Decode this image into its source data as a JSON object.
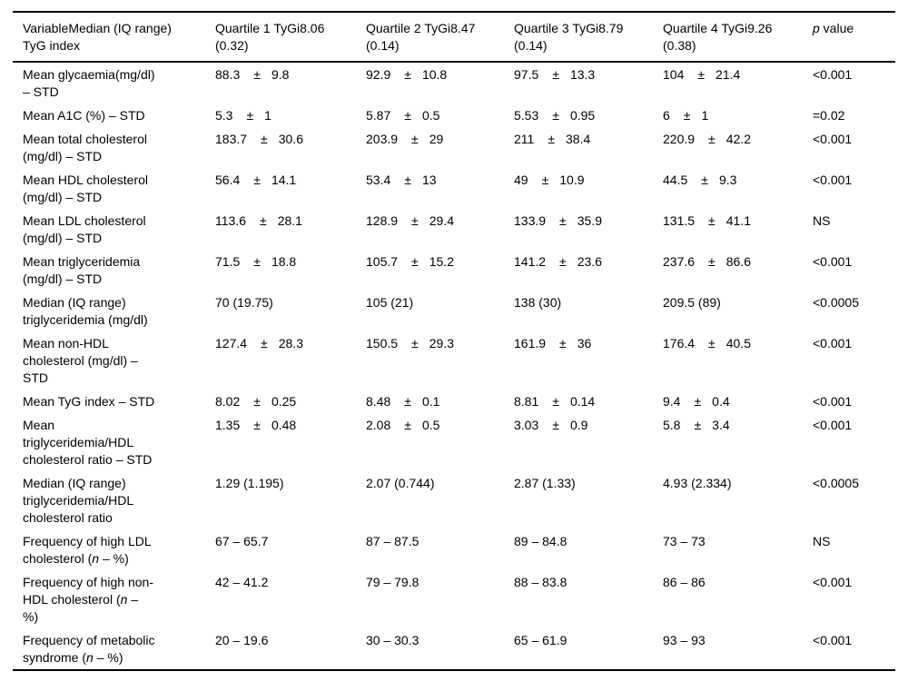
{
  "table": {
    "pm_symbol": "±",
    "header": {
      "variable": {
        "lines": [
          "VariableMedian (IQ range)",
          "TyG index"
        ]
      },
      "quartiles": [
        {
          "lines": [
            "Quartile 1 TyGi8.06",
            "(0.32)"
          ]
        },
        {
          "lines": [
            "Quartile 2 TyGi8.47",
            "(0.14)"
          ]
        },
        {
          "lines": [
            "Quartile 3 TyGi8.79",
            "(0.14)"
          ]
        },
        {
          "lines": [
            "Quartile 4 TyGi9.26",
            "(0.38)"
          ]
        }
      ],
      "p": {
        "segments": [
          {
            "t": "p",
            "i": true
          },
          {
            "t": " value"
          }
        ]
      }
    },
    "rows": [
      {
        "label_lines": [
          "Mean glycaemia(mg/dl)",
          "– STD"
        ],
        "cells": [
          {
            "mean": "88.3",
            "sd": "9.8"
          },
          {
            "mean": "92.9",
            "sd": "10.8"
          },
          {
            "mean": "97.5",
            "sd": "13.3"
          },
          {
            "mean": "104",
            "sd": "21.4"
          }
        ],
        "p": "<0.001"
      },
      {
        "label_lines": [
          "Mean A1C (%) – STD"
        ],
        "cells": [
          {
            "mean": "5.3",
            "sd": "1"
          },
          {
            "mean": "5.87",
            "sd": "0.5"
          },
          {
            "mean": "5.53",
            "sd": "0.95"
          },
          {
            "mean": "6",
            "sd": "1"
          }
        ],
        "p": "=0.02"
      },
      {
        "label_lines": [
          "Mean total cholesterol",
          "(mg/dl) – STD"
        ],
        "cells": [
          {
            "mean": "183.7",
            "sd": "30.6"
          },
          {
            "mean": "203.9",
            "sd": "29"
          },
          {
            "mean": "211",
            "sd": "38.4"
          },
          {
            "mean": "220.9",
            "sd": "42.2"
          }
        ],
        "p": "<0.001"
      },
      {
        "label_lines": [
          "Mean HDL cholesterol",
          "(mg/dl) – STD"
        ],
        "cells": [
          {
            "mean": "56.4",
            "sd": "14.1"
          },
          {
            "mean": "53.4",
            "sd": "13"
          },
          {
            "mean": "49",
            "sd": "10.9"
          },
          {
            "mean": "44.5",
            "sd": "9.3"
          }
        ],
        "p": "<0.001"
      },
      {
        "label_lines": [
          "Mean LDL cholesterol",
          "(mg/dl) – STD"
        ],
        "cells": [
          {
            "mean": "113.6",
            "sd": "28.1"
          },
          {
            "mean": "128.9",
            "sd": "29.4"
          },
          {
            "mean": "133.9",
            "sd": "35.9"
          },
          {
            "mean": "131.5",
            "sd": "41.1"
          }
        ],
        "p": "NS"
      },
      {
        "label_lines": [
          "Mean triglyceridemia",
          "(mg/dl) – STD"
        ],
        "cells": [
          {
            "mean": "71.5",
            "sd": "18.8"
          },
          {
            "mean": "105.7",
            "sd": "15.2"
          },
          {
            "mean": "141.2",
            "sd": "23.6"
          },
          {
            "mean": "237.6",
            "sd": "86.6"
          }
        ],
        "p": "<0.001"
      },
      {
        "label_lines": [
          "Median (IQ range)",
          "triglyceridemia (mg/dl)"
        ],
        "cells": [
          {
            "text": "70 (19.75)"
          },
          {
            "text": "105 (21)"
          },
          {
            "text": "138 (30)"
          },
          {
            "text": "209.5 (89)"
          }
        ],
        "p": "<0.0005"
      },
      {
        "label_lines": [
          "Mean non-HDL",
          "cholesterol (mg/dl) –",
          "STD"
        ],
        "cells": [
          {
            "mean": "127.4",
            "sd": "28.3"
          },
          {
            "mean": "150.5",
            "sd": "29.3"
          },
          {
            "mean": "161.9",
            "sd": "36"
          },
          {
            "mean": "176.4",
            "sd": "40.5"
          }
        ],
        "p": "<0.001"
      },
      {
        "label_lines": [
          "Mean TyG index – STD"
        ],
        "cells": [
          {
            "mean": "8.02",
            "sd": "0.25"
          },
          {
            "mean": "8.48",
            "sd": "0.1"
          },
          {
            "mean": "8.81",
            "sd": "0.14"
          },
          {
            "mean": "9.4",
            "sd": "0.4"
          }
        ],
        "p": "<0.001"
      },
      {
        "label_lines": [
          "Mean",
          "triglyceridemia/HDL",
          "cholesterol ratio – STD"
        ],
        "cells": [
          {
            "mean": "1.35",
            "sd": "0.48"
          },
          {
            "mean": "2.08",
            "sd": "0.5"
          },
          {
            "mean": "3.03",
            "sd": "0.9"
          },
          {
            "mean": "5.8",
            "sd": "3.4"
          }
        ],
        "p": "<0.001"
      },
      {
        "label_lines": [
          "Median (IQ range)",
          "triglyceridemia/HDL",
          "cholesterol ratio"
        ],
        "cells": [
          {
            "text": "1.29 (1.195)"
          },
          {
            "text": "2.07 (0.744)"
          },
          {
            "text": "2.87 (1.33)"
          },
          {
            "text": "4.93 (2.334)"
          }
        ],
        "p": "<0.0005"
      },
      {
        "label_lines": [
          "Frequency of high LDL",
          [
            {
              "t": "cholesterol ("
            },
            {
              "t": "n",
              "i": true
            },
            {
              "t": " – %)"
            }
          ]
        ],
        "cells": [
          {
            "text": "67 – 65.7"
          },
          {
            "text": "87 – 87.5"
          },
          {
            "text": "89 – 84.8"
          },
          {
            "text": "73 – 73"
          }
        ],
        "p": "NS"
      },
      {
        "label_lines": [
          "Frequency of high non-",
          [
            {
              "t": "HDL cholesterol ("
            },
            {
              "t": "n",
              "i": true
            },
            {
              "t": " –"
            }
          ],
          "%)"
        ],
        "cells": [
          {
            "text": "42 – 41.2"
          },
          {
            "text": "79 – 79.8"
          },
          {
            "text": "88 – 83.8"
          },
          {
            "text": "86 – 86"
          }
        ],
        "p": "<0.001"
      },
      {
        "label_lines": [
          "Frequency of metabolic",
          [
            {
              "t": "syndrome ("
            },
            {
              "t": "n",
              "i": true
            },
            {
              "t": " – %)"
            }
          ]
        ],
        "cells": [
          {
            "text": "20 – 19.6"
          },
          {
            "text": "30 – 30.3"
          },
          {
            "text": "65 – 61.9"
          },
          {
            "text": "93 – 93"
          }
        ],
        "p": "<0.001"
      }
    ]
  }
}
